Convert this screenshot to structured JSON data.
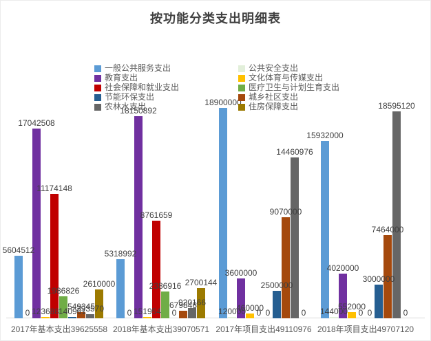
{
  "title": "按功能分类支出明细表",
  "chart_data": {
    "type": "bar",
    "title": "按功能分类支出明细表",
    "categories": [
      "2017年基本支出39625558",
      "2018年基本支出39070571",
      "2017年项目支出49110976",
      "2018年项目支出49707120"
    ],
    "category_totals": [
      39625558,
      39070571,
      49110976,
      49707120
    ],
    "series": [
      {
        "name": "一般公共服务支出",
        "color": "#5B9BD5",
        "values": [
          5604512,
          5318992,
          18900000,
          15932000
        ]
      },
      {
        "name": "公共安全支出",
        "color": "#E2EFDA",
        "values": [
          0,
          0,
          120000,
          144000
        ]
      },
      {
        "name": "教育支出",
        "color": "#7030A0",
        "values": [
          17042508,
          18150892,
          3600000,
          4020000
        ]
      },
      {
        "name": "文化体育与传媒支出",
        "color": "#FFC000",
        "values": [
          123688,
          151954,
          460000,
          552000
        ]
      },
      {
        "name": "社会保障和就业支出",
        "color": "#C00000",
        "values": [
          11174148,
          8761659,
          0,
          0
        ]
      },
      {
        "name": "医疗卫生与计划生育支出",
        "color": "#70AD47",
        "values": [
          1986826,
          2386916,
          0,
          0
        ]
      },
      {
        "name": "节能环保支出",
        "color": "#255E91",
        "values": [
          140961,
          0,
          2500000,
          3000000
        ]
      },
      {
        "name": "城乡社区支出",
        "color": "#A5490D",
        "values": [
          549345,
          679848,
          9070000,
          7464000
        ]
      },
      {
        "name": "农林水支出",
        "color": "#666666",
        "values": [
          393570,
          920166,
          14460976,
          18595120
        ]
      },
      {
        "name": "住房保障支出",
        "color": "#9C7A00",
        "values": [
          2610000,
          2700144,
          0,
          0
        ]
      }
    ],
    "ylim": [
      0,
      19000000
    ],
    "grid": false,
    "data_labels": true,
    "legend_position": "top-center-two-columns",
    "axis_line_color": "#D9D9D9",
    "label_color": "#404040",
    "legend_text_color": "#595959"
  }
}
